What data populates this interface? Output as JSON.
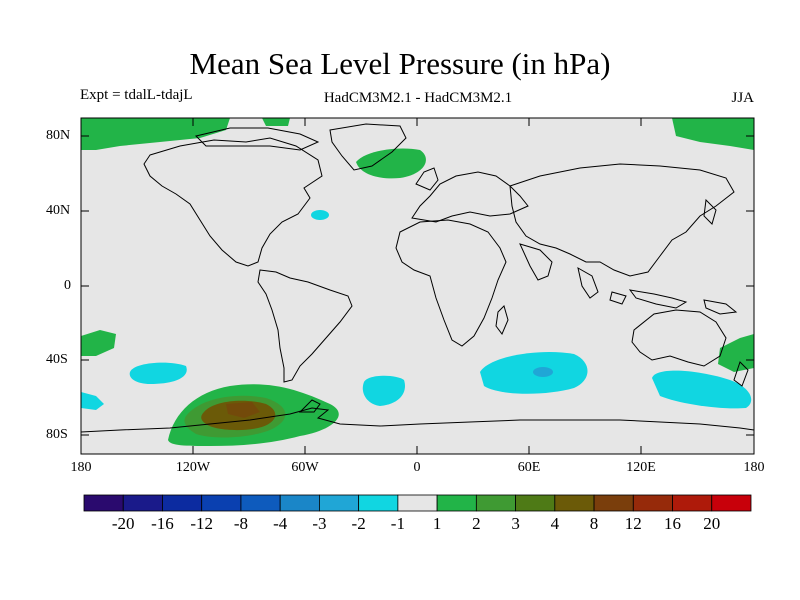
{
  "title": "Mean Sea Level Pressure (in hPa)",
  "expt_label": "Expt = tdalL-tdajL",
  "model_label": "HadCM3M2.1 - HadCM3M2.1",
  "season_label": "JJA",
  "lat_labels": [
    "80N",
    "40N",
    "0",
    "40S",
    "80S"
  ],
  "lon_labels": [
    "180",
    "120W",
    "60W",
    "0",
    "60E",
    "120E",
    "180"
  ],
  "colorbar": {
    "colors": [
      "#2a0a6e",
      "#1a1a8a",
      "#0c2ba0",
      "#0a40b0",
      "#0e5bbd",
      "#1a86c8",
      "#20a6d6",
      "#11d6e1",
      "#e6e6e6",
      "#22b448",
      "#3f9a33",
      "#4e7a16",
      "#6b5a08",
      "#7a3e0c",
      "#962a0a",
      "#ae1a0a",
      "#c8000a"
    ],
    "labels": [
      "-20",
      "-16",
      "-12",
      "-8",
      "-4",
      "-3",
      "-2",
      "-1",
      "1",
      "2",
      "3",
      "4",
      "8",
      "12",
      "16",
      "20"
    ]
  },
  "field_colors": {
    "background": "#e6e6e6",
    "positive_1": "#22b448",
    "positive_2": "#3f9a33",
    "positive_3": "#6b5a08",
    "negative_1": "#11d6e1",
    "negative_2": "#20a6d6"
  }
}
